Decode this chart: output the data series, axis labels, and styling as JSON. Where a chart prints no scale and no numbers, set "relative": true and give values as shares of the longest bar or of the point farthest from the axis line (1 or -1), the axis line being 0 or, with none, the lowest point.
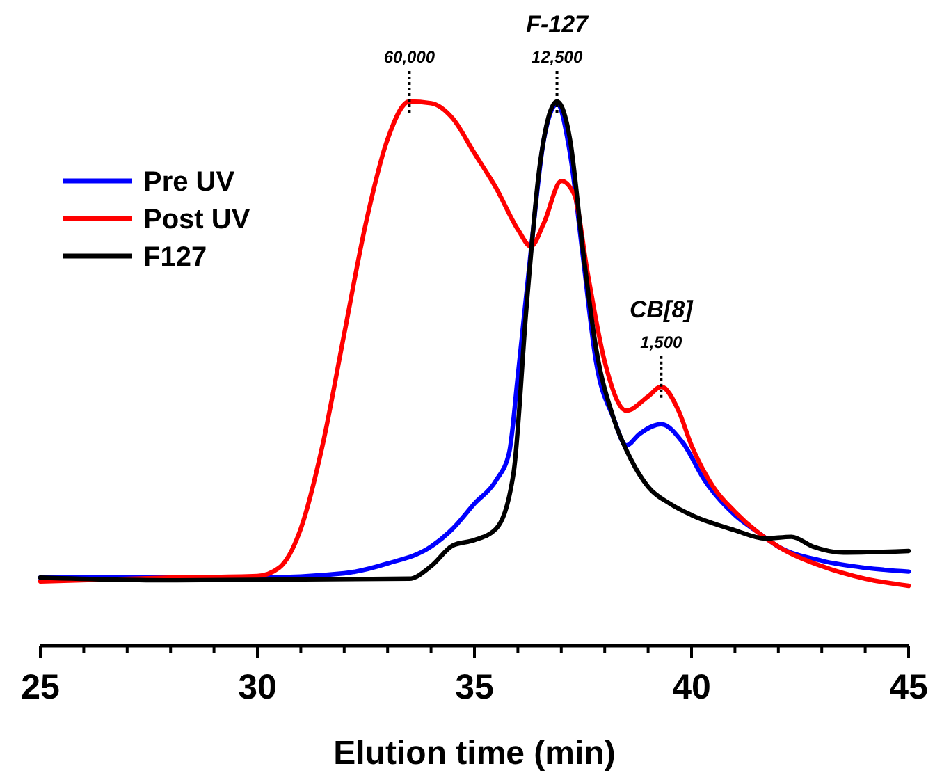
{
  "chart_data": {
    "type": "line",
    "relative": true,
    "xlabel": "Elution time (min)",
    "xlim": [
      25,
      45
    ],
    "xticks": [
      25,
      {
        "value": 26,
        "label": null
      },
      {
        "value": 27,
        "label": null
      },
      {
        "value": 28,
        "label": null
      },
      {
        "value": 29,
        "label": null
      },
      30,
      {
        "value": 31,
        "label": null
      },
      {
        "value": 32,
        "label": null
      },
      {
        "value": 33,
        "label": null
      },
      {
        "value": 34,
        "label": null
      },
      35,
      {
        "value": 36,
        "label": null
      },
      {
        "value": 37,
        "label": null
      },
      {
        "value": 38,
        "label": null
      },
      {
        "value": 39,
        "label": null
      },
      40,
      {
        "value": 41,
        "label": null
      },
      {
        "value": 42,
        "label": null
      },
      {
        "value": 43,
        "label": null
      },
      {
        "value": 44,
        "label": null
      },
      45
    ],
    "legend": "top left",
    "series": [
      {
        "name": "Pre UV",
        "color": "#0000ff",
        "x": [
          25,
          30,
          32,
          33,
          34,
          34.5,
          35,
          35.5,
          35.8,
          36,
          36.3,
          36.6,
          36.9,
          37.2,
          37.5,
          37.8,
          38.2,
          38.5,
          38.8,
          39.3,
          39.8,
          40.3,
          41,
          41.5,
          42,
          43,
          44,
          45
        ],
        "values": [
          0.125,
          0.125,
          0.133,
          0.151,
          0.182,
          0.215,
          0.261,
          0.304,
          0.355,
          0.496,
          0.726,
          0.931,
          0.995,
          0.905,
          0.714,
          0.522,
          0.419,
          0.368,
          0.389,
          0.407,
          0.373,
          0.304,
          0.24,
          0.21,
          0.182,
          0.156,
          0.143,
          0.136
        ]
      },
      {
        "name": "Post UV",
        "color": "#ff0000",
        "x": [
          25,
          28,
          30,
          30.5,
          31,
          31.5,
          32,
          32.5,
          33,
          33.5,
          34,
          34.5,
          35,
          35.5,
          36,
          36.3,
          36.6,
          37,
          37.3,
          37.6,
          38,
          38.5,
          39,
          39.3,
          39.7,
          40,
          40.5,
          41,
          41.5,
          42,
          43,
          44,
          45
        ],
        "values": [
          0.118,
          0.125,
          0.128,
          0.143,
          0.215,
          0.368,
          0.573,
          0.777,
          0.931,
          1.0,
          0.997,
          0.969,
          0.905,
          0.841,
          0.765,
          0.734,
          0.777,
          0.854,
          0.829,
          0.688,
          0.522,
          0.432,
          0.458,
          0.476,
          0.432,
          0.368,
          0.292,
          0.246,
          0.21,
          0.182,
          0.146,
          0.123,
          0.11
        ]
      },
      {
        "name": "F127",
        "color": "#000000",
        "x": [
          25,
          28,
          33.5,
          34,
          34.5,
          35,
          35.5,
          35.9,
          36.2,
          36.5,
          36.9,
          37.2,
          37.5,
          37.8,
          38.2,
          38.6,
          39,
          39.5,
          40,
          41,
          41.7,
          42.3,
          42.8,
          43.5,
          45
        ],
        "values": [
          0.125,
          0.12,
          0.123,
          0.146,
          0.184,
          0.194,
          0.215,
          0.317,
          0.624,
          0.88,
          1.0,
          0.931,
          0.726,
          0.547,
          0.419,
          0.343,
          0.292,
          0.261,
          0.24,
          0.212,
          0.197,
          0.2,
          0.182,
          0.171,
          0.174
        ]
      }
    ],
    "annotations": [
      {
        "text": "60,000",
        "x": 33.5,
        "y": 1.0
      },
      {
        "text": "12,500",
        "x": 36.9,
        "y": 1.0
      },
      {
        "text": "F-127",
        "x": 36.9,
        "y": 1.0
      },
      {
        "text": "1,500",
        "x": 39.3,
        "y": 0.476
      },
      {
        "text": "CB[8]",
        "x": 39.3,
        "y": 0.476
      }
    ]
  }
}
